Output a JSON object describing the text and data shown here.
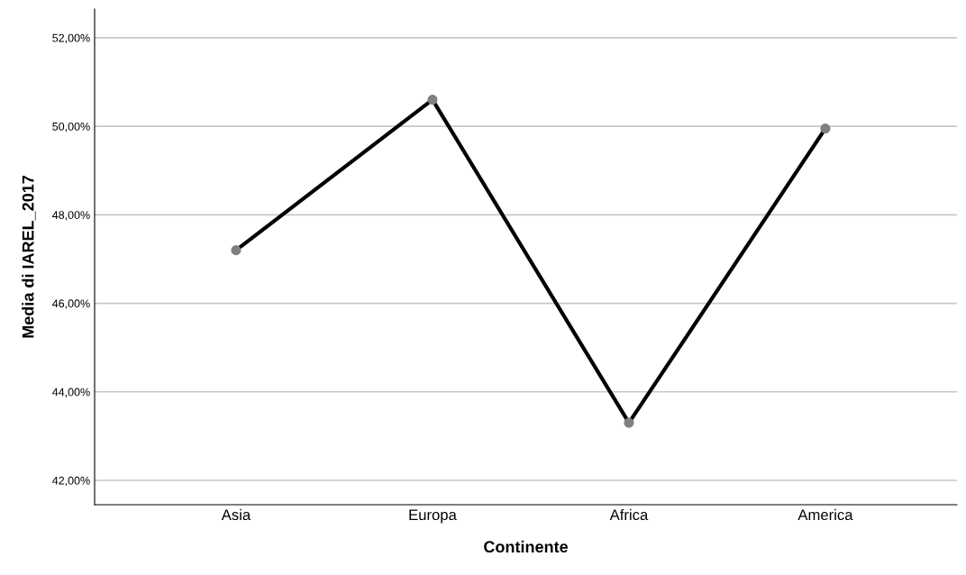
{
  "chart_data": {
    "type": "line",
    "xlabel": "Continente",
    "ylabel": "Media di IAREL_2017",
    "categories": [
      "Asia",
      "Europa",
      "Africa",
      "America"
    ],
    "series": [
      {
        "color": "#000000",
        "values": [
          47.2,
          50.6,
          43.3,
          49.95
        ]
      }
    ],
    "ylim": [
      41.45,
      52.65
    ],
    "yticks": [
      {
        "value": 42,
        "label": "42,00%"
      },
      {
        "value": 44,
        "label": "44,00%"
      },
      {
        "value": 46,
        "label": "46,00%"
      },
      {
        "value": 48,
        "label": "48,00%"
      },
      {
        "value": 50,
        "label": "50,00%"
      },
      {
        "value": 52,
        "label": "52,00%"
      }
    ],
    "grid": "y",
    "marker": "circle",
    "line_style": "solid",
    "legend": false
  }
}
